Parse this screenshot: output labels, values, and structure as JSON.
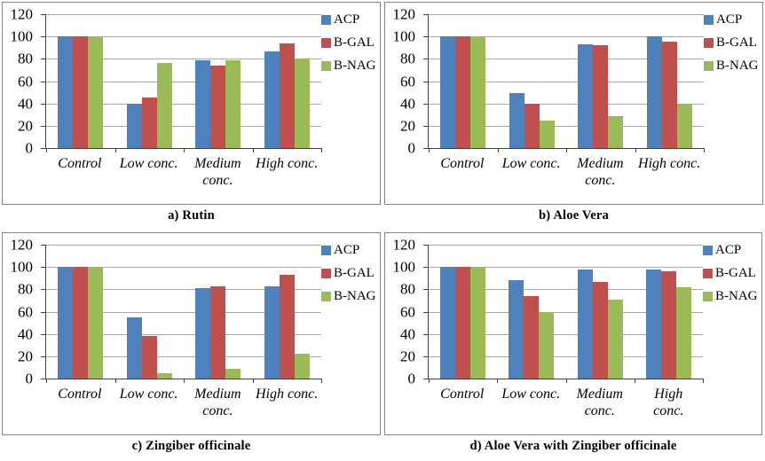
{
  "page": {
    "background": "#ffffff"
  },
  "colors": {
    "acp": "#4F81BD",
    "b_gal": "#C0504D",
    "b_nag": "#9BBB59",
    "gridline": "#A8A8A8",
    "axis": "#404040",
    "panel_border": "#848484",
    "text": "#000000"
  },
  "chart_data": [
    {
      "id": "a",
      "type": "bar",
      "title": "a) Rutin",
      "categories": [
        "Control",
        "Low conc.",
        "Medium\nconc.",
        "High conc."
      ],
      "series": [
        {
          "name": "ACP",
          "color": "#4F81BD",
          "values": [
            100,
            40,
            79,
            87
          ]
        },
        {
          "name": "B-GAL",
          "color": "#C0504D",
          "values": [
            100,
            45,
            74,
            94
          ]
        },
        {
          "name": "B-NAG",
          "color": "#9BBB59",
          "values": [
            100,
            76,
            79,
            80
          ]
        }
      ],
      "legend": [
        "ACP",
        "B-GAL",
        "B-NAG"
      ],
      "legend_position": "right",
      "xlabel": "",
      "ylabel": "",
      "ylim": [
        0,
        120
      ],
      "y_ticks": [
        120,
        100,
        80,
        60,
        40,
        20,
        0
      ],
      "grid": true
    },
    {
      "id": "b",
      "type": "bar",
      "title": "b) Aloe Vera",
      "categories": [
        "Control",
        "Low conc.",
        "Medium\nconc.",
        "High conc."
      ],
      "series": [
        {
          "name": "ACP",
          "color": "#4F81BD",
          "values": [
            100,
            49,
            93,
            100
          ]
        },
        {
          "name": "B-GAL",
          "color": "#C0504D",
          "values": [
            100,
            40,
            92,
            95
          ]
        },
        {
          "name": "B-NAG",
          "color": "#9BBB59",
          "values": [
            100,
            25,
            29,
            40
          ]
        }
      ],
      "legend": [
        "ACP",
        "B-GAL",
        "B-NAG"
      ],
      "legend_position": "right",
      "xlabel": "",
      "ylabel": "",
      "ylim": [
        0,
        120
      ],
      "y_ticks": [
        120,
        100,
        80,
        60,
        40,
        20,
        0
      ],
      "grid": true
    },
    {
      "id": "c",
      "type": "bar",
      "title": "c) Zingiber officinale",
      "categories": [
        "Control",
        "Low conc.",
        "Medium\nconc.",
        "High conc."
      ],
      "series": [
        {
          "name": "ACP",
          "color": "#4F81BD",
          "values": [
            100,
            55,
            81,
            83
          ]
        },
        {
          "name": "B-GAL",
          "color": "#C0504D",
          "values": [
            100,
            38,
            83,
            93
          ]
        },
        {
          "name": "B-NAG",
          "color": "#9BBB59",
          "values": [
            100,
            5,
            9,
            22
          ]
        }
      ],
      "legend": [
        "ACP",
        "B-GAL",
        "B-NAG"
      ],
      "legend_position": "right",
      "xlabel": "",
      "ylabel": "",
      "ylim": [
        0,
        120
      ],
      "y_ticks": [
        120,
        100,
        80,
        60,
        40,
        20,
        0
      ],
      "grid": true
    },
    {
      "id": "d",
      "type": "bar",
      "title": "d) Aloe Vera with Zingiber officinale",
      "categories": [
        "Control",
        "Low conc.",
        "Medium\nconc.",
        "High\nconc."
      ],
      "series": [
        {
          "name": "ACP",
          "color": "#4F81BD",
          "values": [
            100,
            88,
            98,
            98
          ]
        },
        {
          "name": "B-GAL",
          "color": "#C0504D",
          "values": [
            100,
            74,
            87,
            96
          ]
        },
        {
          "name": "B-NAG",
          "color": "#9BBB59",
          "values": [
            100,
            60,
            71,
            82
          ]
        }
      ],
      "legend": [
        "ACP",
        "B-GAL",
        "B-NAG"
      ],
      "legend_position": "right",
      "xlabel": "",
      "ylabel": "",
      "ylim": [
        0,
        120
      ],
      "y_ticks": [
        120,
        100,
        80,
        60,
        40,
        20,
        0
      ],
      "grid": true
    }
  ]
}
